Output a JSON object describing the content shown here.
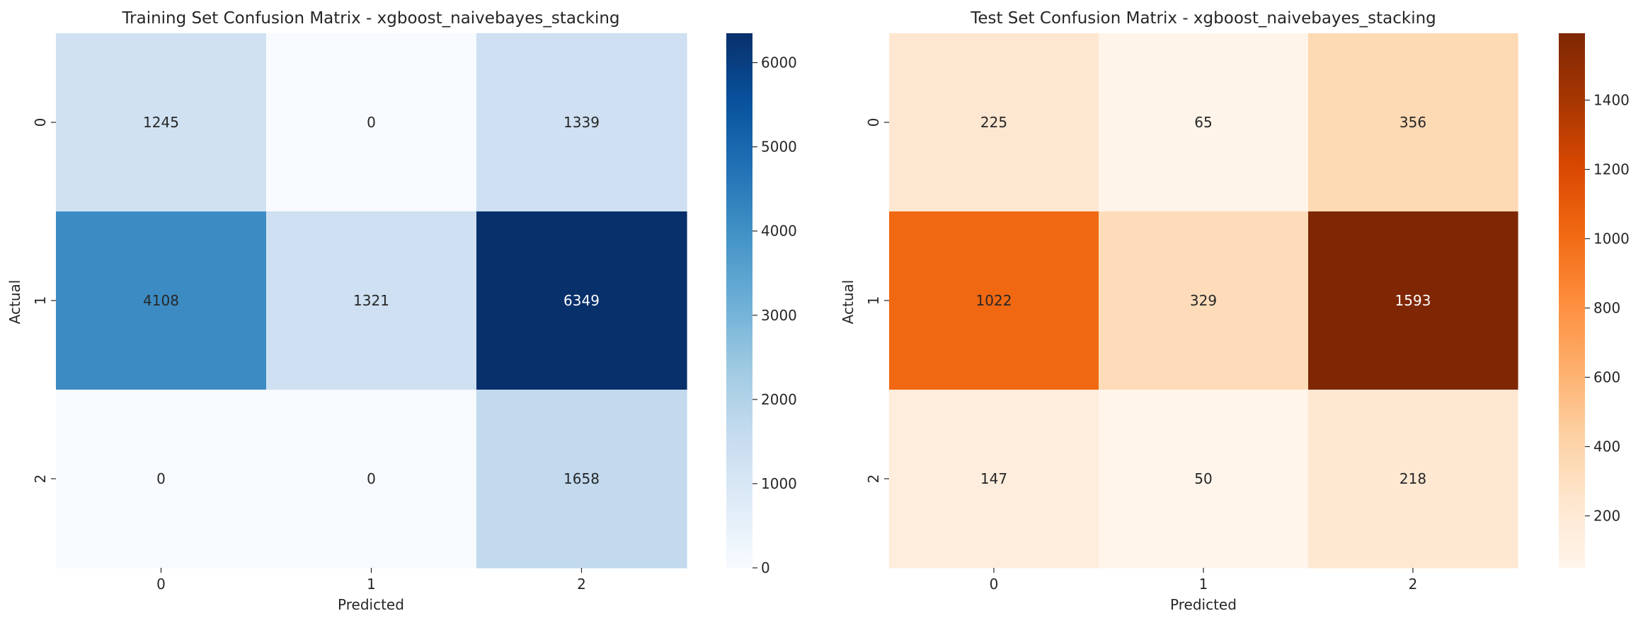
{
  "chart_data": [
    {
      "type": "heatmap",
      "title": "Training Set Confusion Matrix - xgboost_naivebayes_stacking",
      "xlabel": "Predicted",
      "ylabel": "Actual",
      "x_categories": [
        "0",
        "1",
        "2"
      ],
      "y_categories": [
        "0",
        "1",
        "2"
      ],
      "values": [
        [
          1245,
          0,
          1339
        ],
        [
          4108,
          1321,
          6349
        ],
        [
          0,
          0,
          1658
        ]
      ],
      "colormap": "Blues",
      "colorbar_range": [
        0,
        6349
      ],
      "colorbar_ticks": [
        0,
        1000,
        2000,
        3000,
        4000,
        5000,
        6000
      ]
    },
    {
      "type": "heatmap",
      "title": "Test Set Confusion Matrix - xgboost_naivebayes_stacking",
      "xlabel": "Predicted",
      "ylabel": "Actual",
      "x_categories": [
        "0",
        "1",
        "2"
      ],
      "y_categories": [
        "0",
        "1",
        "2"
      ],
      "values": [
        [
          225,
          65,
          356
        ],
        [
          1022,
          329,
          1593
        ],
        [
          147,
          50,
          218
        ]
      ],
      "colormap": "Oranges",
      "colorbar_range": [
        50,
        1593
      ],
      "colorbar_ticks": [
        200,
        400,
        600,
        800,
        1000,
        1200,
        1400
      ]
    }
  ]
}
